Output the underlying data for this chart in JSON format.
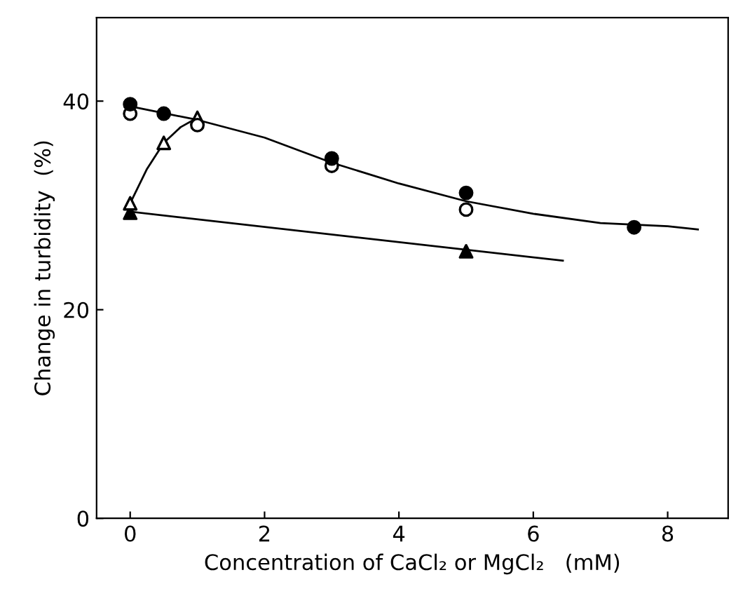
{
  "chart_data": {
    "type": "scatter",
    "xlabel": "Concentration of CaCl₂ or MgCl₂   (mM)",
    "ylabel": "Change in turbidity  (%)",
    "xlim": [
      -0.5,
      8.9
    ],
    "ylim": [
      0,
      48
    ],
    "xticks": [
      0,
      2,
      4,
      6,
      8
    ],
    "yticks": [
      0,
      20,
      40
    ],
    "grid": false,
    "legend": false,
    "series": [
      {
        "type": "line",
        "color": "#000000",
        "marker": "none",
        "line_style": "solid",
        "x": [
          0,
          1,
          2,
          3,
          4,
          5,
          6,
          7,
          8,
          8.45
        ],
        "values": [
          39.5,
          38.2,
          36.5,
          34.1,
          32.1,
          30.4,
          29.2,
          28.3,
          28.0,
          27.7
        ]
      },
      {
        "type": "line",
        "color": "#000000",
        "marker": "none",
        "line_style": "solid",
        "x": [
          0,
          0.25,
          0.5,
          0.75,
          1
        ],
        "values": [
          30.2,
          33.5,
          36.0,
          37.5,
          38.4
        ]
      },
      {
        "type": "line",
        "color": "#000000",
        "marker": "none",
        "line_style": "solid",
        "x": [
          0,
          6.44
        ],
        "values": [
          29.4,
          24.7
        ]
      },
      {
        "color": "#000000",
        "marker": "circle",
        "x": [
          0,
          0.5,
          3,
          5,
          7.5
        ],
        "values": [
          39.7,
          38.8,
          34.5,
          31.2,
          27.9
        ]
      },
      {
        "color": "#ffffff",
        "marker": "circle",
        "x": [
          0,
          1,
          3,
          5
        ],
        "values": [
          38.8,
          37.7,
          33.8,
          29.6
        ]
      },
      {
        "color": "#ffffff",
        "marker": "triangle",
        "x": [
          0,
          0.5,
          1
        ],
        "values": [
          30.2,
          36.0,
          38.4
        ]
      },
      {
        "color": "#000000",
        "marker": "triangle",
        "x": [
          0,
          5
        ],
        "values": [
          29.3,
          25.6
        ]
      }
    ]
  }
}
